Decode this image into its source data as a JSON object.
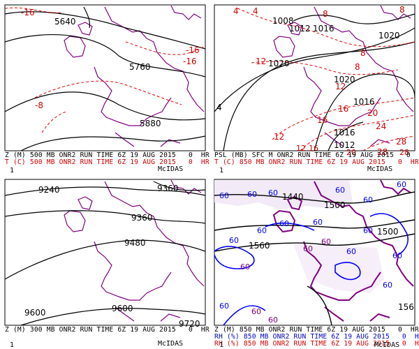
{
  "colors": {
    "coastline": "#800080",
    "height_contour": "#000000",
    "temp_contour": "#e00000",
    "rh_contour": "#0000ff",
    "rh_fill": "#4a0064"
  },
  "panels": [
    {
      "caption_line1": "Z (M) 500 MB ONR2 RUN TIME 6Z 19 AUG 2015   0  HR",
      "caption_line2": "T (C) 500 MB ONR2 RUN TIME 6Z 19 AUG 2015   0  HR",
      "frame_no": "1",
      "brand": "McIDAS",
      "labels": [
        "-16",
        "5640",
        "5760",
        "-16",
        "-16",
        "-8",
        "5880"
      ]
    },
    {
      "caption_line1": "PSL (MB) SFC M ONR2 RUN TIME 6Z 19 AUG 2015   0  HR",
      "caption_line2": "T (C) 850 MB ONR2 RUN TIME 6Z 19 AUG 2015   0  HR",
      "frame_no": "1",
      "brand": "McIDAS",
      "labels": [
        "4",
        "4",
        "8",
        "1008",
        "1012",
        "1016",
        "8",
        "1020",
        "12",
        "1020",
        "8",
        "8",
        "1020",
        "12",
        "1016",
        "16",
        "20",
        "4",
        "16",
        "1016",
        "24",
        "12",
        "1012",
        "28",
        "28",
        "12",
        "16",
        "20",
        "28"
      ]
    },
    {
      "caption_line1": "Z (M) 300 MB ONR2 RUN TIME 6Z 19 AUG 2015   0  HR",
      "caption_line2": "",
      "frame_no": "1",
      "brand": "McIDAS",
      "labels": [
        "9240",
        "9360",
        "9360",
        "9480",
        "9600",
        "9600",
        "9720"
      ]
    },
    {
      "caption_line1": "Z (M) 850 MB ONR2 RUN TIME 6Z 19 AUG 2015   0  HR",
      "caption_line2": "RH (%) 850 MB ONR2 RUN TIME 6Z 19 AUG 2015   0  HR",
      "caption_line3": "RH (%) 850 MB ONR2 RUN TIME 6Z 19 AUG 2015   0  HR",
      "frame_no": "1",
      "brand": "McIDAS",
      "labels": [
        "60",
        "60",
        "1440",
        "60",
        "1500",
        "60",
        "60",
        "60",
        "60",
        "1560",
        "60",
        "1500",
        "60",
        "60",
        "60",
        "60",
        "60",
        "60",
        "60",
        "60",
        "60",
        "60",
        "60",
        "60",
        "156"
      ]
    }
  ]
}
